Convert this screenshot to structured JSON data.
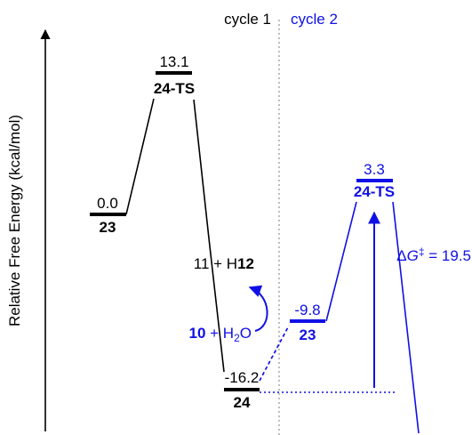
{
  "axis": {
    "ylabel": "Relative Free Energy (kcal/mol)"
  },
  "cycles": {
    "cycle1": "cycle 1",
    "cycle2": "cycle 2"
  },
  "colors": {
    "cycle1": "#000000",
    "cycle2": "#1010e6",
    "divider": "#9a9a9a"
  },
  "cycle1": {
    "start": {
      "energy": "0.0",
      "label": "23"
    },
    "ts": {
      "energy": "13.1",
      "label": "24-TS"
    },
    "product": {
      "energy": "-16.2",
      "label": "24"
    },
    "byproduct": {
      "prefix": "11 + H",
      "bold": "12"
    }
  },
  "cycle2": {
    "reagents": {
      "bold": "10",
      "plus": " + H",
      "sub": "2",
      "tail": "O"
    },
    "start": {
      "energy": "-9.8",
      "label": "23"
    },
    "ts": {
      "energy": "3.3",
      "label": "24-TS"
    },
    "barrier": {
      "delta": "Δ",
      "g": "G",
      "dagger": "‡",
      "value": " = 19.5"
    }
  }
}
